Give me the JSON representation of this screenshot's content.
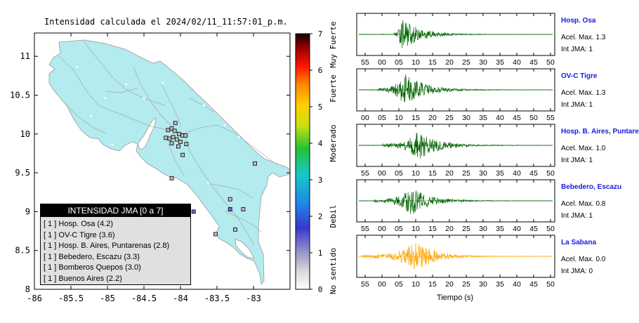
{
  "map": {
    "title": "Intensidad calculada el 2024/02/11_11:57:01_p.m.",
    "xlim": [
      -86.0,
      -82.5
    ],
    "ylim": [
      8.0,
      11.3
    ],
    "x_ticks": [
      "-86",
      "-85.5",
      "-85",
      "-84.5",
      "-84",
      "-83.5",
      "-83"
    ],
    "y_ticks": [
      "8",
      "8.5",
      "9",
      "9.5",
      "10",
      "10.5",
      "11"
    ],
    "land_color": "#b3ebee",
    "stations": [
      {
        "lon": -84.17,
        "lat": 10.05,
        "color": "#bdbdbd"
      },
      {
        "lon": -84.12,
        "lat": 10.07,
        "color": "#bdbdbd"
      },
      {
        "lon": -84.08,
        "lat": 10.04,
        "color": "#bdbdbd"
      },
      {
        "lon": -84.02,
        "lat": 10.0,
        "color": "#bdbdbd"
      },
      {
        "lon": -83.97,
        "lat": 9.98,
        "color": "#bdbdbd"
      },
      {
        "lon": -83.93,
        "lat": 9.98,
        "color": "#bdbdbd"
      },
      {
        "lon": -84.2,
        "lat": 9.95,
        "color": "#bdbdbd"
      },
      {
        "lon": -84.15,
        "lat": 9.94,
        "color": "#bdbdbd"
      },
      {
        "lon": -84.1,
        "lat": 9.96,
        "color": "#bdbdbd"
      },
      {
        "lon": -84.05,
        "lat": 9.93,
        "color": "#bdbdbd"
      },
      {
        "lon": -84.0,
        "lat": 9.9,
        "color": "#bdbdbd"
      },
      {
        "lon": -84.12,
        "lat": 9.88,
        "color": "#bdbdbd"
      },
      {
        "lon": -84.03,
        "lat": 9.84,
        "color": "#bdbdbd"
      },
      {
        "lon": -83.92,
        "lat": 9.87,
        "color": "#bdbdbd"
      },
      {
        "lon": -84.07,
        "lat": 10.14,
        "color": "#bdbdbd"
      },
      {
        "lon": -83.97,
        "lat": 9.73,
        "color": "#bdbdbd"
      },
      {
        "lon": -84.12,
        "lat": 9.43,
        "color": "#bdbdbd"
      },
      {
        "lon": -82.98,
        "lat": 9.62,
        "color": "#bdbdbd"
      },
      {
        "lon": -83.32,
        "lat": 9.16,
        "color": "#bdbdbd"
      },
      {
        "lon": -83.32,
        "lat": 9.03,
        "color": "#6b6bd6"
      },
      {
        "lon": -83.14,
        "lat": 9.03,
        "color": "#bdbdbd"
      },
      {
        "lon": -83.52,
        "lat": 8.71,
        "color": "#bdbdbd"
      },
      {
        "lon": -83.25,
        "lat": 8.77,
        "color": "#bdbdbd"
      },
      {
        "lon": -83.82,
        "lat": 9.0,
        "color": "#6b6bd6"
      }
    ]
  },
  "colorbar": {
    "ticks": [
      "0",
      "1",
      "2",
      "3",
      "4",
      "5",
      "6",
      "7"
    ],
    "categories": [
      {
        "label": "No sentido",
        "value": 0.5
      },
      {
        "label": "Debil",
        "value": 2.0
      },
      {
        "label": "Moderado",
        "value": 4.0
      },
      {
        "label": "Fuerte",
        "value": 5.5
      },
      {
        "label": "Muy Fuerte",
        "value": 6.7
      }
    ]
  },
  "legend": {
    "title": "INTENSIDAD JMA [0 a 7]",
    "items": [
      "[ 1 ]  Hosp. Osa (4.2)",
      "[ 1 ]  OV-C Tigre (3.6)",
      "[ 1 ]  Hosp. B. Aires, Puntarenas (2.8)",
      "[ 1 ]  Bebedero, Escazu (3.3)",
      "[ 1 ]  Bomberos Quepos (3.0)",
      "[ 1 ]  Buenos Aires (2.2)"
    ]
  },
  "traces": [
    {
      "name": "Hosp. Osa",
      "accel": "Acel. Max. 1.3",
      "jma": "Int JMA: 1",
      "color": "#006400",
      "ticks": [
        "55",
        "00",
        "05",
        "10",
        "15",
        "20",
        "25",
        "30",
        "35",
        "40",
        "45",
        "50"
      ],
      "onset": 0.18,
      "peak": 0.22,
      "amp": 0.85
    },
    {
      "name": "OV-C Tigre",
      "accel": "Acel. Max. 1.3",
      "jma": "Int JMA: 1",
      "color": "#006400",
      "ticks": [
        "00",
        "05",
        "10",
        "15",
        "20",
        "25",
        "30",
        "35",
        "40",
        "45",
        "50",
        "55"
      ],
      "onset": 0.1,
      "peak": 0.24,
      "amp": 0.9
    },
    {
      "name": "Hosp. B. Aires, Puntare",
      "accel": "Acel. Max. 1.0",
      "jma": "Int JMA: 1",
      "color": "#006400",
      "ticks": [
        "55",
        "00",
        "05",
        "10",
        "15",
        "20",
        "25",
        "30",
        "35",
        "40",
        "45",
        "50"
      ],
      "onset": 0.12,
      "peak": 0.31,
      "amp": 0.8
    },
    {
      "name": "Bebedero, Escazu",
      "accel": "Acel. Max. 0.8",
      "jma": "Int JMA: 1",
      "color": "#006400",
      "ticks": [
        "55",
        "00",
        "05",
        "10",
        "15",
        "20",
        "25",
        "30",
        "35",
        "40",
        "45",
        "50"
      ],
      "onset": 0.08,
      "peak": 0.27,
      "amp": 0.75
    },
    {
      "name": "La Sabana",
      "accel": "Acel. Max. 0.0",
      "jma": "Int JMA: 0",
      "color": "#ffa500",
      "ticks": [
        "55",
        "00",
        "05",
        "10",
        "15",
        "20",
        "25",
        "30",
        "35",
        "40",
        "45",
        "50"
      ],
      "onset": 0.02,
      "peak": 0.3,
      "amp": 0.8
    }
  ],
  "xlabel": "Tiempo (s)",
  "chart_data": [
    {
      "type": "scatter",
      "title": "Intensidad calculada el 2024/02/11_11:57:01_p.m.",
      "xlabel": "",
      "ylabel": "",
      "xlim": [
        -86.0,
        -82.5
      ],
      "ylim": [
        8.0,
        11.3
      ],
      "legend": {
        "title": "INTENSIDAD JMA [0 a 7]",
        "placement": "bottom-left"
      },
      "colorbar": {
        "range": [
          0,
          7
        ],
        "labels": [
          "No sentido",
          "Debil",
          "Moderado",
          "Fuerte",
          "Muy Fuerte"
        ]
      }
    },
    {
      "type": "line",
      "xlabel": "Tiempo (s)",
      "series": [
        {
          "name": "Hosp. Osa",
          "peak_accel": 1.3,
          "jma": 1
        },
        {
          "name": "OV-C Tigre",
          "peak_accel": 1.3,
          "jma": 1
        },
        {
          "name": "Hosp. B. Aires, Puntare",
          "peak_accel": 1.0,
          "jma": 1
        },
        {
          "name": "Bebedero, Escazu",
          "peak_accel": 0.8,
          "jma": 1
        },
        {
          "name": "La Sabana",
          "peak_accel": 0.0,
          "jma": 0
        }
      ]
    }
  ]
}
